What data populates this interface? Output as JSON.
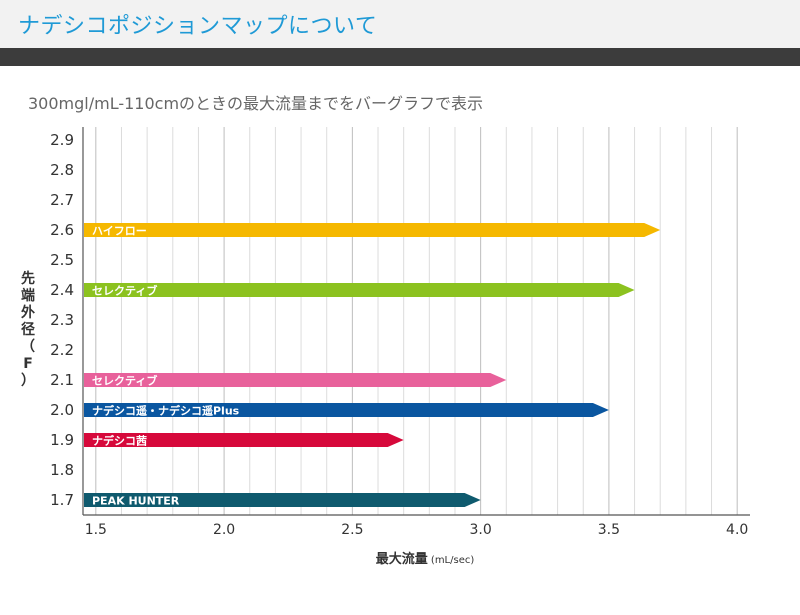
{
  "header": {
    "title": "ナデシコポジションマップについて"
  },
  "subtitle": "300mgl/mL-110cmのときの最大流量までをバーグラフで表示",
  "chart_data": {
    "type": "bar",
    "orientation": "horizontal",
    "xlabel_main": "最大流量",
    "xlabel_unit": "(mL/sec)",
    "ylabel": "先端外径（F）",
    "xlim": [
      1.45,
      4.05
    ],
    "xticks": [
      "1.5",
      "2.0",
      "2.5",
      "3.0",
      "3.5",
      "4.0"
    ],
    "yticks": [
      "1.7",
      "1.8",
      "1.9",
      "2.0",
      "2.1",
      "2.2",
      "2.3",
      "2.4",
      "2.5",
      "2.6",
      "2.7",
      "2.8",
      "2.9"
    ],
    "grid": true,
    "series": [
      {
        "name": "ハイフロー",
        "y": 2.6,
        "value": 3.7,
        "color": "#f5b800"
      },
      {
        "name": "セレクティブ",
        "y": 2.4,
        "value": 3.6,
        "color": "#8cc21f"
      },
      {
        "name": "セレクティブ",
        "y": 2.1,
        "value": 3.1,
        "color": "#e8619b"
      },
      {
        "name": "ナデシコ遥・ナデシコ遥Plus",
        "y": 2.0,
        "value": 3.5,
        "color": "#0a56a0"
      },
      {
        "name": "ナデシコ茜",
        "y": 1.9,
        "value": 2.7,
        "color": "#d6093b"
      },
      {
        "name": "PEAK HUNTER",
        "y": 1.7,
        "value": 3.0,
        "color": "#0f5a6e"
      }
    ]
  }
}
